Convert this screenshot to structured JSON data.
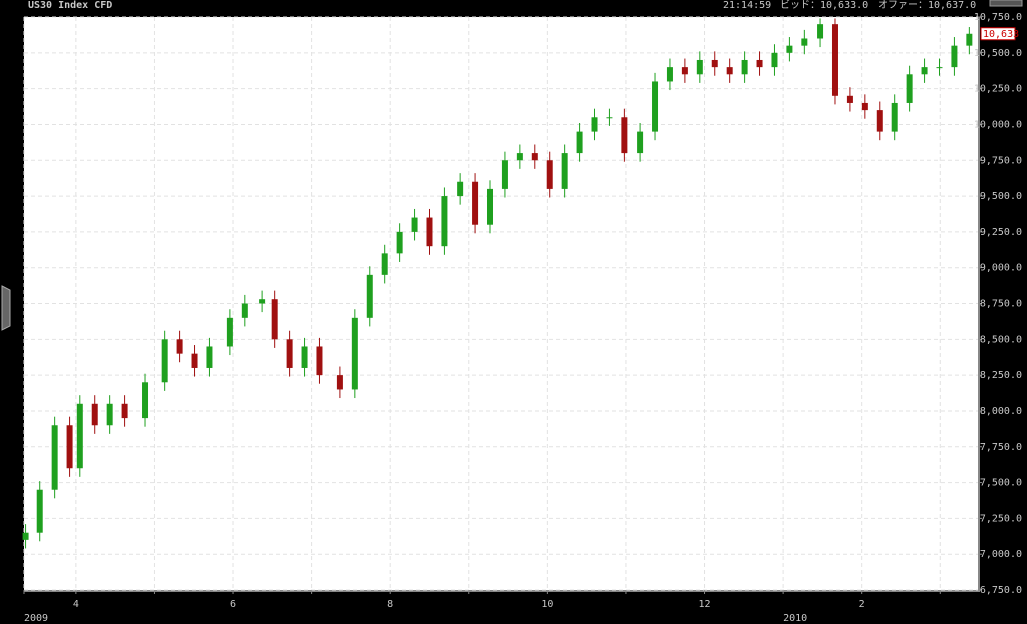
{
  "chart_data": {
    "type": "candlestick",
    "title": "US30 Index CFD",
    "time": "21:14:59",
    "bid": "ビッド：10,633.0",
    "offer": "オファー：10,637.0",
    "last_price": {
      "value": 10633,
      "label": "10,633"
    },
    "up_color": "#1fa01f",
    "down_color": "#a01010",
    "grid": true,
    "xlim": [
      0.34,
      12.48
    ],
    "xticks": [
      {
        "value": 0.34,
        "label": "2009"
      },
      {
        "value": 1,
        "label": "4"
      },
      {
        "value": 2,
        "label": null
      },
      {
        "value": 3,
        "label": "6"
      },
      {
        "value": 4,
        "label": null
      },
      {
        "value": 5,
        "label": "8"
      },
      {
        "value": 6,
        "label": null
      },
      {
        "value": 7,
        "label": "10"
      },
      {
        "value": 8,
        "label": null
      },
      {
        "value": 9,
        "label": "12"
      },
      {
        "value": 10,
        "label": "2010"
      },
      {
        "value": 11,
        "label": "2"
      },
      {
        "value": 12,
        "label": null
      }
    ],
    "ylim": [
      6750,
      10750
    ],
    "yticks": [
      {
        "value": 6750,
        "label": "6,750.0"
      },
      {
        "value": 7000,
        "label": "7,000.0"
      },
      {
        "value": 7250,
        "label": "7,250.0"
      },
      {
        "value": 7500,
        "label": "7,500.0"
      },
      {
        "value": 7750,
        "label": "7,750.0"
      },
      {
        "value": 8000,
        "label": "8,000.0"
      },
      {
        "value": 8250,
        "label": "8,250.0"
      },
      {
        "value": 8500,
        "label": "8,500.0"
      },
      {
        "value": 8750,
        "label": "8,750.0"
      },
      {
        "value": 9000,
        "label": "9,000.0"
      },
      {
        "value": 9250,
        "label": "9,250.0"
      },
      {
        "value": 9500,
        "label": "9,500.0"
      },
      {
        "value": 9750,
        "label": "9,750.0"
      },
      {
        "value": 10000,
        "label": "10,000.0"
      },
      {
        "value": 10250,
        "label": "10,250.0"
      },
      {
        "value": 10500,
        "label": "10,500.0"
      },
      {
        "value": 10750,
        "label": "10,750.0"
      }
    ],
    "x": [
      0.36,
      0.54,
      0.73,
      0.92,
      1.05,
      1.24,
      1.43,
      1.62,
      1.88,
      2.13,
      2.32,
      2.51,
      2.7,
      2.96,
      3.15,
      3.37,
      3.53,
      3.72,
      3.91,
      4.1,
      4.36,
      4.55,
      4.74,
      4.93,
      5.12,
      5.31,
      5.5,
      5.69,
      5.89,
      6.08,
      6.27,
      6.46,
      6.65,
      6.84,
      7.03,
      7.22,
      7.41,
      7.6,
      7.79,
      7.98,
      8.18,
      8.37,
      8.56,
      8.75,
      8.94,
      9.13,
      9.32,
      9.51,
      9.7,
      9.89,
      10.08,
      10.27,
      10.47,
      10.66,
      10.85,
      11.04,
      11.23,
      11.42,
      11.61,
      11.8,
      11.99,
      12.18,
      12.37
    ],
    "open": [
      7100,
      7150,
      7450,
      7900,
      7600,
      8050,
      7900,
      8050,
      7950,
      8200,
      8500,
      8400,
      8300,
      8450,
      8650,
      8750,
      8780,
      8500,
      8300,
      8450,
      8250,
      8150,
      8650,
      8950,
      9100,
      9250,
      9350,
      9150,
      9500,
      9600,
      9300,
      9550,
      9750,
      9800,
      9750,
      9550,
      9800,
      9950,
      10050,
      10050,
      9800,
      9950,
      10300,
      10400,
      10350,
      10450,
      10400,
      10350,
      10450,
      10400,
      10500,
      10550,
      10600,
      10700,
      10200,
      10150,
      10100,
      9950,
      10150,
      10350,
      10400,
      10400,
      10550
    ],
    "high": [
      7210,
      7510,
      7960,
      7960,
      8110,
      8110,
      8110,
      8110,
      8260,
      8560,
      8560,
      8460,
      8510,
      8710,
      8810,
      8840,
      8840,
      8560,
      8510,
      8510,
      8310,
      8710,
      9010,
      9160,
      9310,
      9410,
      9410,
      9560,
      9660,
      9660,
      9610,
      9810,
      9860,
      9860,
      9810,
      9860,
      10010,
      10110,
      10110,
      10110,
      10010,
      10360,
      10460,
      10460,
      10510,
      10510,
      10460,
      10510,
      10510,
      10560,
      10610,
      10660,
      10740,
      10740,
      10260,
      10210,
      10160,
      10210,
      10410,
      10460,
      10460,
      10610,
      10680
    ],
    "low": [
      7040,
      7090,
      7390,
      7540,
      7540,
      7840,
      7840,
      7890,
      7890,
      8140,
      8340,
      8240,
      8240,
      8390,
      8590,
      8690,
      8440,
      8240,
      8240,
      8190,
      8090,
      8090,
      8590,
      8890,
      9040,
      9190,
      9090,
      9090,
      9440,
      9240,
      9240,
      9490,
      9690,
      9690,
      9490,
      9490,
      9740,
      9890,
      9990,
      9740,
      9740,
      9890,
      10240,
      10290,
      10290,
      10340,
      10290,
      10290,
      10340,
      10340,
      10440,
      10490,
      10540,
      10140,
      10090,
      10040,
      9890,
      9890,
      10090,
      10290,
      10340,
      10340,
      10490
    ],
    "close": [
      7150,
      7450,
      7900,
      7600,
      8050,
      7900,
      8050,
      7950,
      8200,
      8500,
      8400,
      8300,
      8450,
      8650,
      8750,
      8780,
      8500,
      8300,
      8450,
      8250,
      8150,
      8650,
      8950,
      9100,
      9250,
      9350,
      9150,
      9500,
      9600,
      9300,
      9550,
      9750,
      9800,
      9750,
      9550,
      9800,
      9950,
      10050,
      10050,
      9800,
      9950,
      10300,
      10400,
      10350,
      10450,
      10400,
      10350,
      10450,
      10400,
      10500,
      10550,
      10600,
      10700,
      10200,
      10150,
      10100,
      9950,
      10150,
      10350,
      10400,
      10400,
      10550,
      10633
    ]
  }
}
